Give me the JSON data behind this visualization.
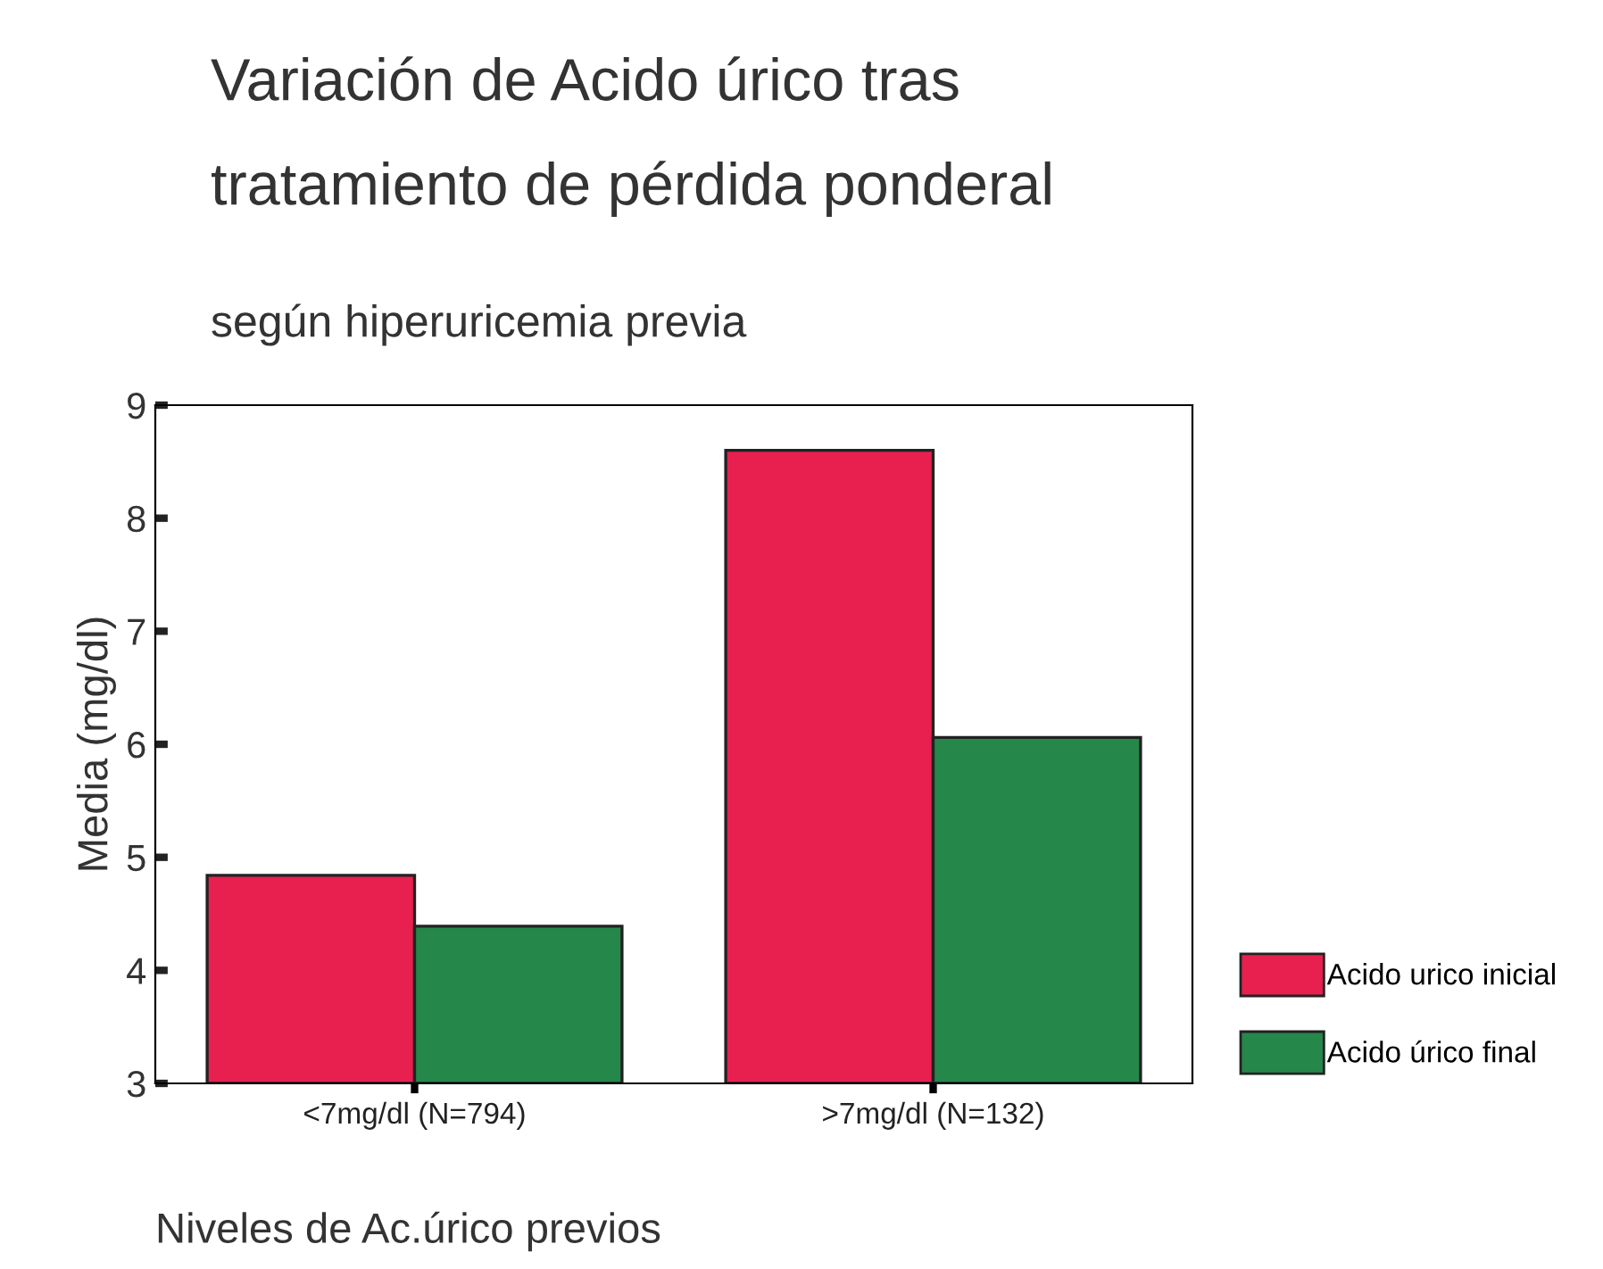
{
  "chart_data": {
    "type": "bar",
    "title": "Variación de Acido úrico tras\ntratamiento de pérdida ponderal",
    "subtitle": "según hiperuricemia previa",
    "xlabel": "Niveles de Ac.úrico previos",
    "ylabel": "Media (mg/dl)",
    "categories": [
      "<7mg/dl (N=794)",
      ">7mg/dl (N=132)"
    ],
    "series": [
      {
        "name": "Acido urico inicial",
        "color": "#e8204f",
        "values": [
          4.84,
          8.6
        ]
      },
      {
        "name": "Acido úrico final",
        "color": "#25874a",
        "values": [
          4.39,
          6.06
        ]
      }
    ],
    "ylim": [
      3,
      9
    ],
    "yticks": [
      3,
      4,
      5,
      6,
      7,
      8,
      9
    ],
    "grid": false,
    "legend": "right"
  }
}
